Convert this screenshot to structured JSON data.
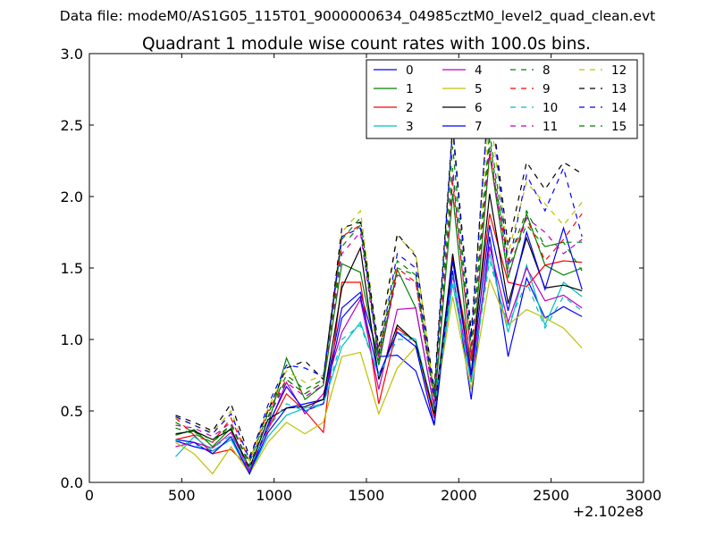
{
  "header": {
    "suptitle": "Data file: modeM0/AS1G05_115T01_9000000634_04985cztM0_level2_quad_clean.evt"
  },
  "chart_data": {
    "type": "line",
    "title": "Quadrant 1 module wise count rates with 100.0s bins.",
    "xlabel": "",
    "ylabel": "",
    "x_offset_label": "+2.102e8",
    "xlim": [
      0,
      3000
    ],
    "ylim": [
      0,
      3.0
    ],
    "x_ticks": [
      0,
      500,
      1000,
      1500,
      2000,
      2500,
      3000
    ],
    "x_tick_labels": [
      "0",
      "500",
      "1000",
      "1500",
      "2000",
      "2500",
      "3000"
    ],
    "y_ticks": [
      0,
      0.5,
      1.0,
      1.5,
      2.0,
      2.5,
      3.0
    ],
    "y_tick_labels": [
      "0.0",
      "0.5",
      "1.0",
      "1.5",
      "2.0",
      "2.5",
      "3.0"
    ],
    "grid": false,
    "legend_position": "top-right",
    "x": [
      467,
      567,
      667,
      767,
      867,
      967,
      1067,
      1167,
      1267,
      1367,
      1467,
      1567,
      1667,
      1767,
      1867,
      1967,
      2067,
      2167,
      2267,
      2367,
      2467,
      2567,
      2667
    ],
    "series": [
      {
        "name": "0",
        "color": "#0000ff",
        "dash": false,
        "values": [
          0.29,
          0.25,
          0.22,
          0.3,
          0.06,
          0.35,
          0.52,
          0.55,
          0.58,
          1.22,
          1.33,
          0.88,
          0.89,
          0.78,
          0.4,
          1.48,
          0.58,
          1.72,
          0.88,
          1.43,
          1.15,
          1.23,
          1.16
        ]
      },
      {
        "name": "1",
        "color": "#008000",
        "dash": false,
        "values": [
          0.33,
          0.37,
          0.25,
          0.38,
          0.08,
          0.4,
          0.87,
          0.58,
          0.68,
          1.53,
          1.47,
          0.82,
          1.49,
          1.22,
          0.52,
          2.02,
          0.75,
          2.3,
          1.43,
          1.88,
          1.52,
          1.45,
          1.5
        ]
      },
      {
        "name": "2",
        "color": "#ff0000",
        "dash": false,
        "values": [
          0.3,
          0.33,
          0.2,
          0.23,
          0.1,
          0.37,
          0.62,
          0.5,
          0.35,
          1.4,
          1.4,
          0.55,
          1.08,
          0.98,
          0.45,
          1.57,
          0.85,
          1.88,
          1.4,
          1.37,
          1.52,
          1.55,
          1.54
        ]
      },
      {
        "name": "3",
        "color": "#00bfbf",
        "dash": false,
        "values": [
          0.18,
          0.32,
          0.22,
          0.3,
          0.06,
          0.32,
          0.47,
          0.52,
          0.55,
          0.95,
          1.12,
          0.75,
          1.05,
          1.0,
          0.48,
          1.39,
          0.7,
          1.6,
          1.05,
          1.52,
          1.1,
          1.4,
          1.3
        ]
      },
      {
        "name": "4",
        "color": "#bf00bf",
        "dash": false,
        "values": [
          0.25,
          0.28,
          0.24,
          0.35,
          0.08,
          0.38,
          0.7,
          0.48,
          0.62,
          1.05,
          1.28,
          0.65,
          1.21,
          1.22,
          0.52,
          1.45,
          0.72,
          1.65,
          1.12,
          1.5,
          1.27,
          1.31,
          1.22
        ]
      },
      {
        "name": "5",
        "color": "#bfbf00",
        "dash": false,
        "values": [
          0.28,
          0.2,
          0.06,
          0.25,
          0.06,
          0.28,
          0.42,
          0.34,
          0.42,
          0.88,
          0.91,
          0.48,
          0.8,
          0.95,
          0.5,
          1.3,
          0.65,
          1.42,
          1.1,
          1.21,
          1.15,
          1.08,
          0.94
        ]
      },
      {
        "name": "6",
        "color": "#000000",
        "dash": false,
        "values": [
          0.34,
          0.36,
          0.3,
          0.37,
          0.1,
          0.44,
          0.52,
          0.53,
          0.58,
          1.36,
          1.64,
          0.72,
          1.1,
          0.98,
          0.48,
          1.6,
          0.75,
          2.02,
          1.25,
          1.71,
          1.36,
          1.38,
          1.34
        ]
      },
      {
        "name": "7",
        "color": "#0000ff",
        "dash": false,
        "values": [
          0.3,
          0.28,
          0.2,
          0.32,
          0.06,
          0.4,
          0.67,
          0.5,
          0.55,
          1.15,
          1.3,
          0.75,
          1.05,
          0.95,
          0.4,
          1.55,
          0.75,
          1.8,
          1.2,
          1.75,
          1.35,
          1.78,
          1.35
        ]
      },
      {
        "name": "8",
        "color": "#008000",
        "dash": true,
        "values": [
          0.42,
          0.35,
          0.3,
          0.4,
          0.14,
          0.48,
          0.75,
          0.65,
          0.72,
          1.7,
          1.85,
          0.9,
          1.55,
          1.45,
          0.6,
          2.35,
          0.95,
          2.45,
          1.55,
          1.9,
          1.65,
          1.68,
          1.68
        ]
      },
      {
        "name": "9",
        "color": "#ff0000",
        "dash": true,
        "values": [
          0.45,
          0.33,
          0.28,
          0.45,
          0.15,
          0.5,
          0.72,
          0.62,
          0.7,
          1.72,
          1.8,
          0.88,
          1.5,
          1.4,
          0.58,
          2.1,
          0.9,
          2.3,
          1.55,
          1.85,
          1.55,
          1.7,
          1.88
        ]
      },
      {
        "name": "10",
        "color": "#00bfbf",
        "dash": true,
        "values": [
          0.3,
          0.26,
          0.24,
          0.33,
          0.1,
          0.38,
          0.55,
          0.5,
          0.55,
          1.0,
          1.1,
          0.75,
          1.0,
          1.0,
          0.5,
          1.45,
          0.7,
          1.55,
          1.1,
          1.4,
          1.08,
          1.3,
          1.2
        ]
      },
      {
        "name": "11",
        "color": "#bf00bf",
        "dash": true,
        "values": [
          0.4,
          0.38,
          0.32,
          0.42,
          0.12,
          0.45,
          0.7,
          0.6,
          0.68,
          1.6,
          1.75,
          0.85,
          1.45,
          1.4,
          0.55,
          2.15,
          0.88,
          2.35,
          1.45,
          1.85,
          1.75,
          1.6,
          1.7
        ]
      },
      {
        "name": "12",
        "color": "#bfbf00",
        "dash": true,
        "values": [
          0.45,
          0.4,
          0.35,
          0.5,
          0.15,
          0.52,
          0.78,
          0.7,
          0.75,
          1.75,
          1.9,
          0.92,
          1.72,
          1.6,
          0.62,
          2.45,
          1.0,
          2.6,
          1.6,
          2.1,
          1.95,
          1.8,
          1.96
        ]
      },
      {
        "name": "13",
        "color": "#000000",
        "dash": true,
        "values": [
          0.47,
          0.42,
          0.36,
          0.55,
          0.18,
          0.5,
          0.8,
          0.85,
          0.72,
          1.78,
          1.82,
          0.95,
          1.74,
          1.58,
          0.65,
          2.5,
          1.05,
          2.75,
          1.65,
          2.24,
          2.05,
          2.24,
          2.16
        ]
      },
      {
        "name": "14",
        "color": "#0000ff",
        "dash": true,
        "values": [
          0.46,
          0.4,
          0.34,
          0.48,
          0.16,
          0.54,
          0.82,
          0.8,
          0.74,
          1.72,
          1.78,
          0.9,
          1.6,
          1.5,
          0.6,
          2.48,
          1.0,
          2.78,
          1.5,
          2.15,
          1.9,
          2.2,
          1.72
        ]
      },
      {
        "name": "15",
        "color": "#008000",
        "dash": true,
        "values": [
          0.38,
          0.34,
          0.28,
          0.4,
          0.12,
          0.46,
          0.72,
          0.62,
          0.7,
          1.65,
          1.8,
          0.85,
          1.5,
          1.45,
          0.58,
          2.2,
          0.92,
          2.4,
          1.5,
          1.8,
          1.65,
          1.68,
          1.48
        ]
      }
    ]
  }
}
